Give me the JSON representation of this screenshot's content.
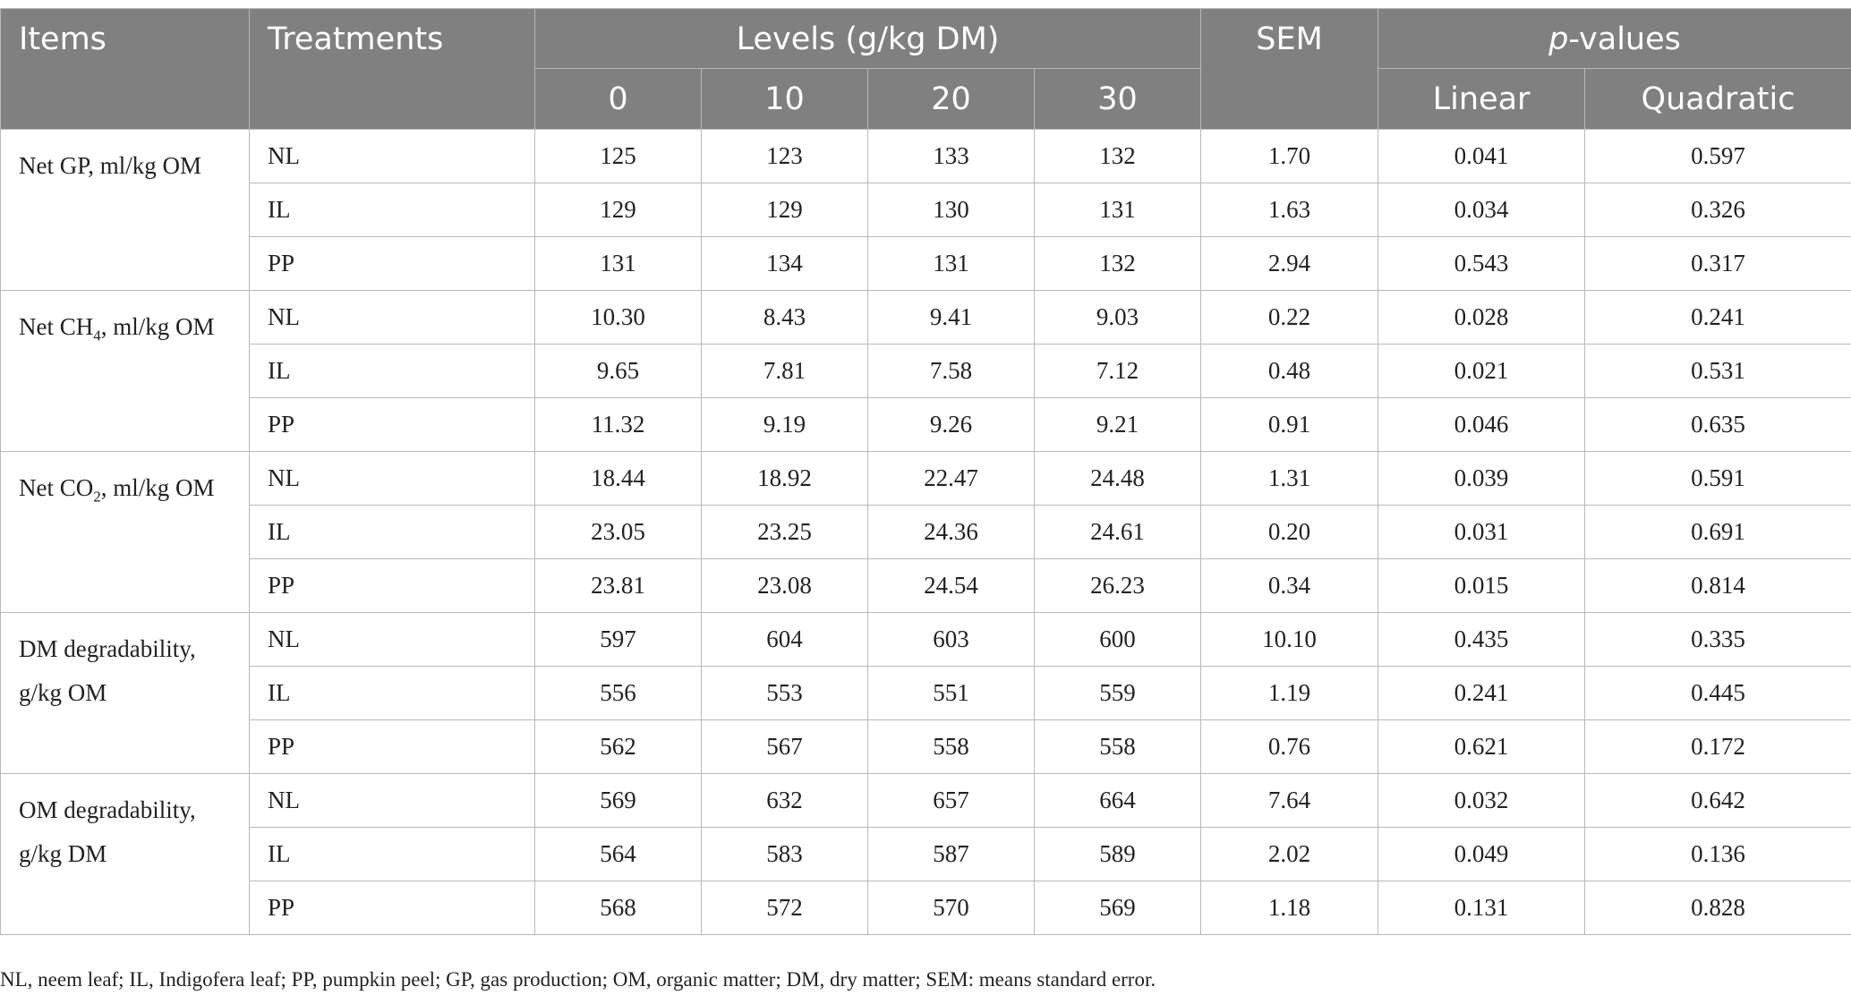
{
  "header": {
    "items": "Items",
    "treatments": "Treatments",
    "levels": "Levels (g/kg DM)",
    "sem": "SEM",
    "p_prefix": "p",
    "p_suffix": "-values",
    "level_values": [
      "0",
      "10",
      "20",
      "30"
    ],
    "linear": "Linear",
    "quadratic": "Quadratic"
  },
  "groups": [
    {
      "item_pre": "Net GP, ml/kg OM",
      "item_sub": "",
      "item_post": "",
      "item_line2": "",
      "rows": [
        [
          "NL",
          "125",
          "123",
          "133",
          "132",
          "1.70",
          "0.041",
          "0.597"
        ],
        [
          "IL",
          "129",
          "129",
          "130",
          "131",
          "1.63",
          "0.034",
          "0.326"
        ],
        [
          "PP",
          "131",
          "134",
          "131",
          "132",
          "2.94",
          "0.543",
          "0.317"
        ]
      ]
    },
    {
      "item_pre": "Net CH",
      "item_sub": "4",
      "item_post": ", ml/kg OM",
      "item_line2": "",
      "rows": [
        [
          "NL",
          "10.30",
          "8.43",
          "9.41",
          "9.03",
          "0.22",
          "0.028",
          "0.241"
        ],
        [
          "IL",
          "9.65",
          "7.81",
          "7.58",
          "7.12",
          "0.48",
          "0.021",
          "0.531"
        ],
        [
          "PP",
          "11.32",
          "9.19",
          "9.26",
          "9.21",
          "0.91",
          "0.046",
          "0.635"
        ]
      ]
    },
    {
      "item_pre": "Net CO",
      "item_sub": "2",
      "item_post": ", ml/kg OM",
      "item_line2": "",
      "rows": [
        [
          "NL",
          "18.44",
          "18.92",
          "22.47",
          "24.48",
          "1.31",
          "0.039",
          "0.591"
        ],
        [
          "IL",
          "23.05",
          "23.25",
          "24.36",
          "24.61",
          "0.20",
          "0.031",
          "0.691"
        ],
        [
          "PP",
          "23.81",
          "23.08",
          "24.54",
          "26.23",
          "0.34",
          "0.015",
          "0.814"
        ]
      ]
    },
    {
      "item_pre": "DM degradability,",
      "item_sub": "",
      "item_post": "",
      "item_line2": "g/kg OM",
      "rows": [
        [
          "NL",
          "597",
          "604",
          "603",
          "600",
          "10.10",
          "0.435",
          "0.335"
        ],
        [
          "IL",
          "556",
          "553",
          "551",
          "559",
          "1.19",
          "0.241",
          "0.445"
        ],
        [
          "PP",
          "562",
          "567",
          "558",
          "558",
          "0.76",
          "0.621",
          "0.172"
        ]
      ]
    },
    {
      "item_pre": "OM degradability,",
      "item_sub": "",
      "item_post": "",
      "item_line2": "g/kg DM",
      "rows": [
        [
          "NL",
          "569",
          "632",
          "657",
          "664",
          "7.64",
          "0.032",
          "0.642"
        ],
        [
          "IL",
          "564",
          "583",
          "587",
          "589",
          "2.02",
          "0.049",
          "0.136"
        ],
        [
          "PP",
          "568",
          "572",
          "570",
          "569",
          "1.18",
          "0.131",
          "0.828"
        ]
      ]
    }
  ],
  "footnote": "NL, neem leaf; IL, Indigofera leaf; PP, pumpkin peel; GP, gas production; OM, organic matter; DM, dry matter; SEM: means standard error."
}
